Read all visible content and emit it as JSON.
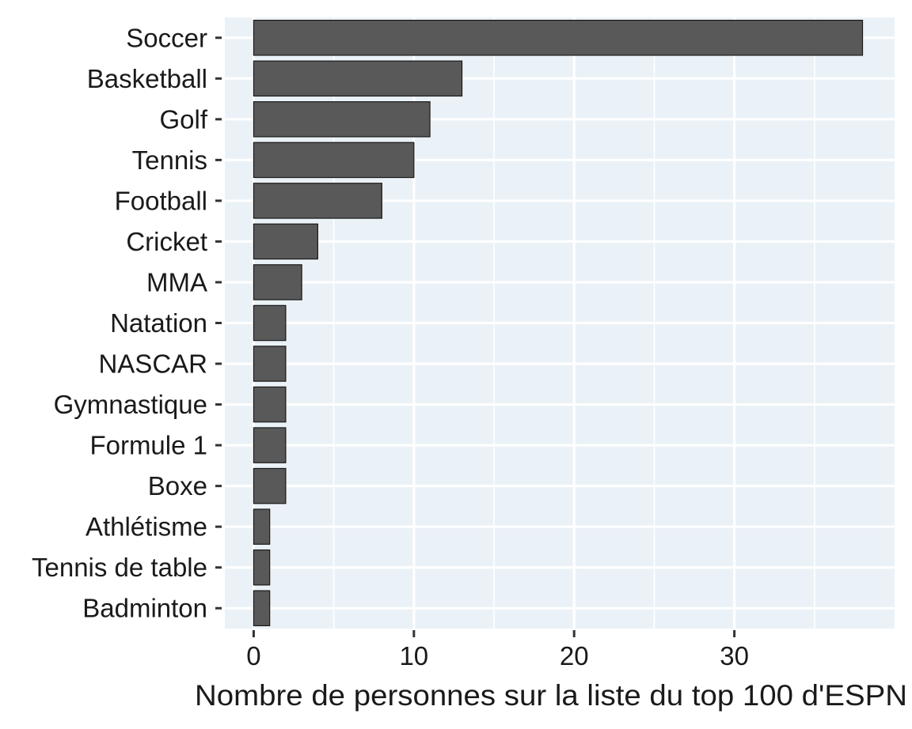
{
  "chart_data": {
    "type": "bar",
    "orientation": "horizontal",
    "title": "",
    "xlabel": "Nombre de personnes sur la liste du top 100 d'ESPN",
    "ylabel": "",
    "categories": [
      "Soccer",
      "Basketball",
      "Golf",
      "Tennis",
      "Football",
      "Cricket",
      "MMA",
      "Natation",
      "NASCAR",
      "Gymnastique",
      "Formule 1",
      "Boxe",
      "Athlétisme",
      "Tennis de table",
      "Badminton"
    ],
    "values": [
      38,
      13,
      11,
      10,
      8,
      4,
      3,
      2,
      2,
      2,
      2,
      2,
      1,
      1,
      1
    ],
    "xlim": [
      -1.8,
      40
    ],
    "xticks": [
      0,
      10,
      20,
      30
    ],
    "xtick_labels": [
      "0",
      "10",
      "20",
      "30"
    ],
    "grid": true,
    "legend": "none",
    "colors": {
      "panel_background": "#EBF2F7",
      "bar_fill": "#595959",
      "bar_stroke": "#1a1a1a",
      "grid_line": "#ffffff",
      "text": "#1a1a1a"
    }
  }
}
